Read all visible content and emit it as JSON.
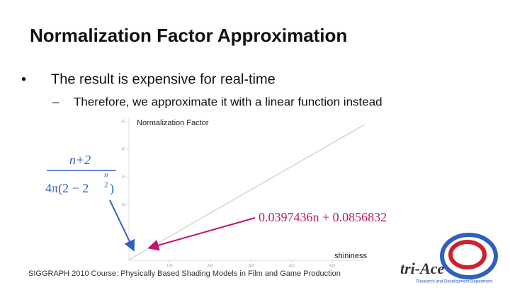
{
  "slide": {
    "title": "Normalization Factor Approximation",
    "bullets": [
      "The result is expensive for real-time",
      "Therefore, we approximate it with a linear function instead"
    ],
    "formula": {
      "numerator": "n+2",
      "denominator": "4π(2 − 2",
      "exponent_numerator": "n",
      "exponent_denominator": "2",
      "closing": ")"
    },
    "approximation": "0.0397436n + 0.0856832",
    "footer": "SIGGRAPH 2010 Course: Physically Based Shading Models in Film and Game Production",
    "logo": {
      "name": "tri-Ace",
      "subtitle": "Research and Development Department"
    }
  },
  "chart_data": {
    "type": "line",
    "y_label": "Normalization Factor",
    "x_label": "shininess",
    "x": [
      0,
      580
    ],
    "series": [
      {
        "color": "#c4c4c4",
        "values": [
          0.1,
          24.5
        ]
      }
    ],
    "xlim": [
      0,
      580
    ],
    "ylim": [
      0,
      25
    ],
    "xticks": [
      100,
      200,
      300,
      400,
      500
    ],
    "yticks": [
      10,
      15,
      20,
      25
    ]
  }
}
